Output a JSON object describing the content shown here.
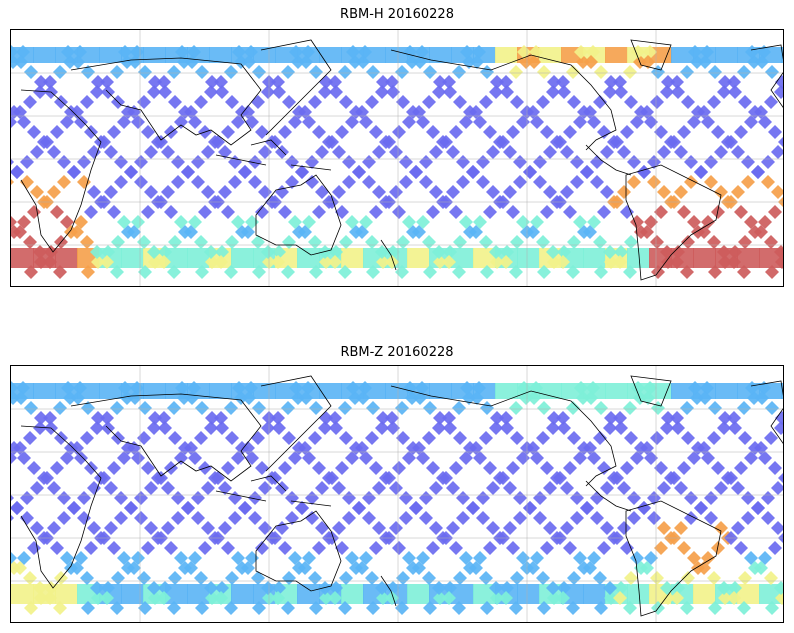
{
  "panels": [
    {
      "id": "h",
      "title": "RBM-H 20160228"
    },
    {
      "id": "z",
      "title": "RBM-Z 20160228"
    }
  ],
  "colormap": {
    "low": "#6b6bf0",
    "mid_low": "#5ab4f5",
    "mid": "#7ef0d8",
    "mid_high": "#f2f28a",
    "high": "#f5a04a",
    "max": "#cd5c5c"
  },
  "coastline_color": "#000000",
  "grid_color": "#b0b0b0"
}
